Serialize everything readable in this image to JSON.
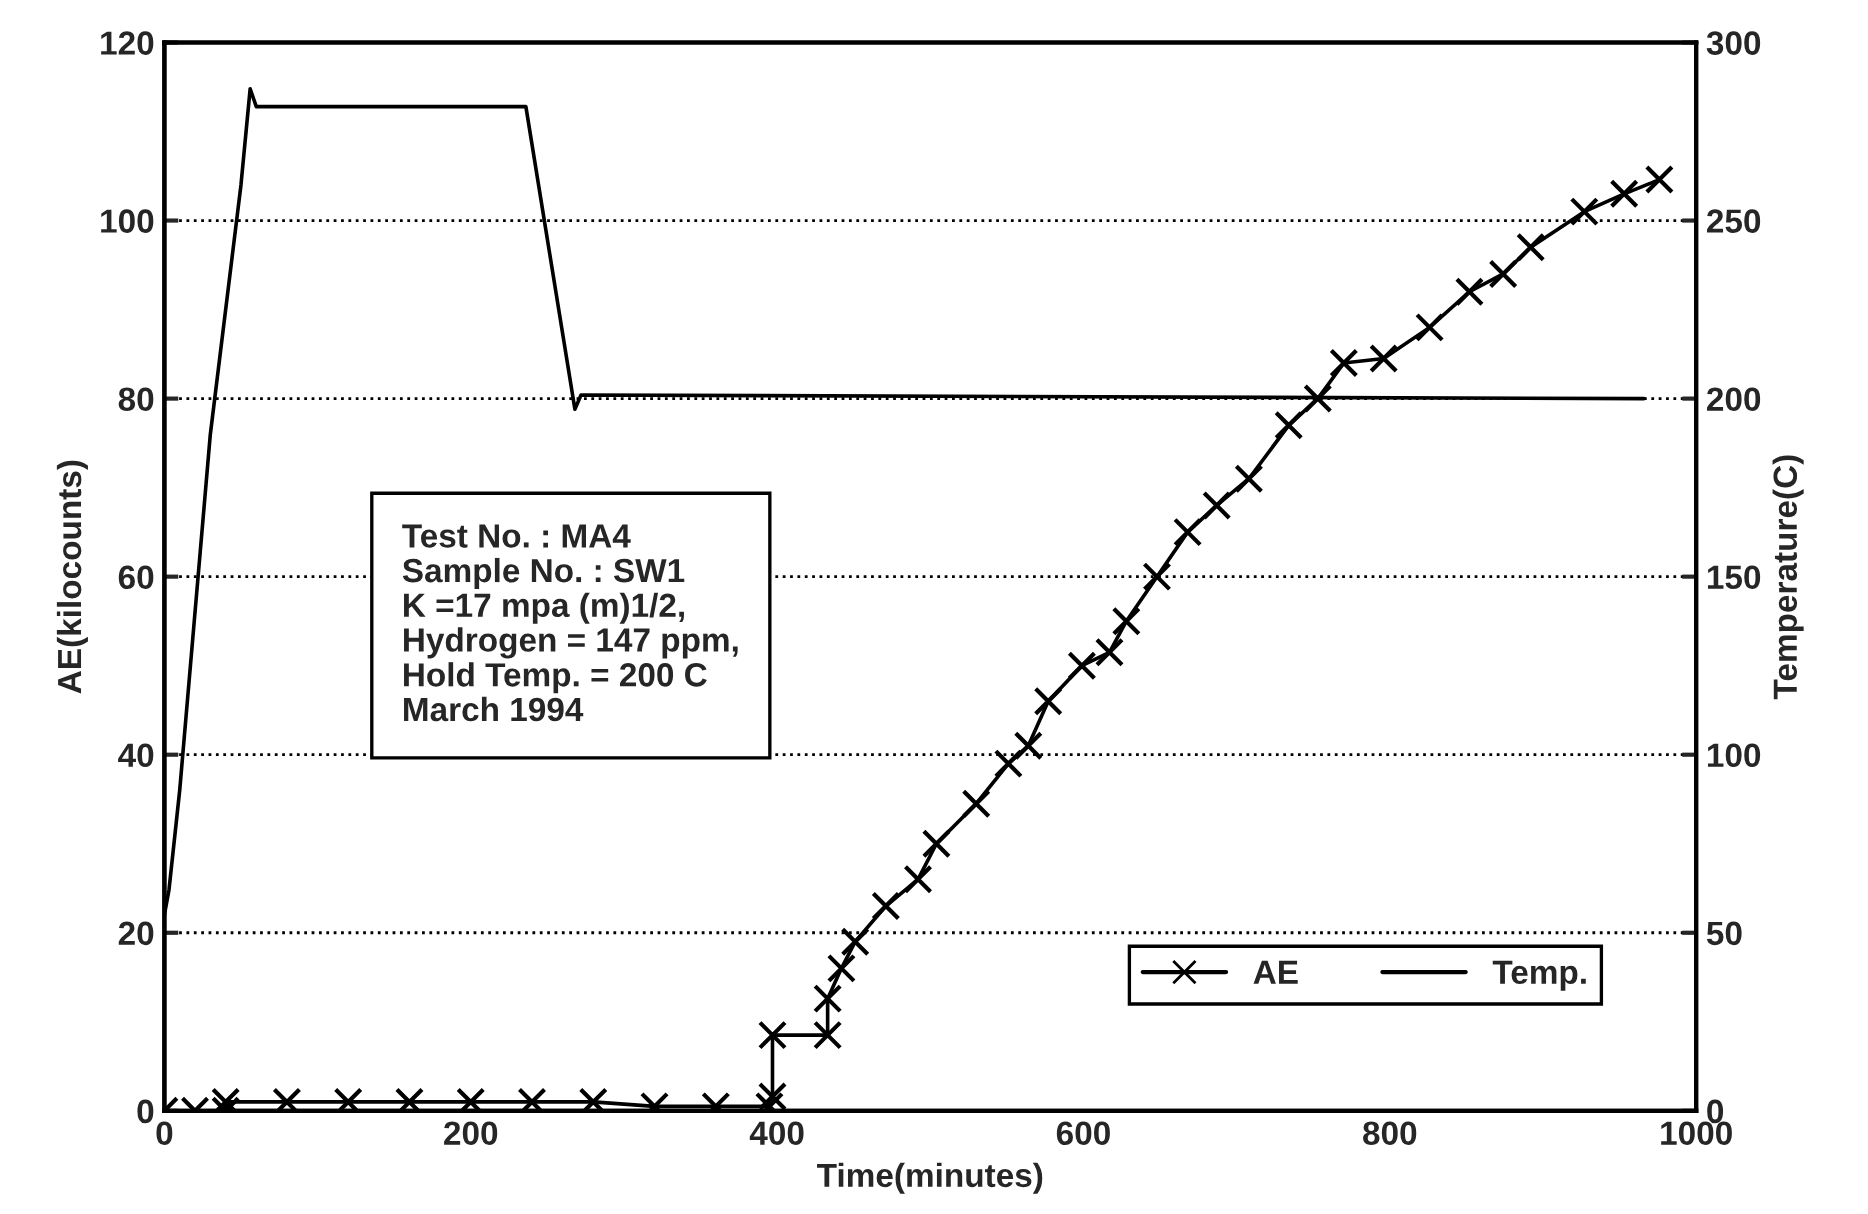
{
  "chart_data": {
    "type": "line",
    "xlabel": "Time(minutes)",
    "ylabel": "AE(kilocounts)",
    "y2label": "Temperature(C)",
    "xlim": [
      0,
      1000
    ],
    "xticks": [
      0,
      200,
      400,
      600,
      800,
      1000
    ],
    "ylim": [
      0,
      120
    ],
    "yticks": [
      0,
      20,
      40,
      60,
      80,
      100,
      120
    ],
    "y2lim": [
      0,
      300
    ],
    "y2ticks": [
      0,
      50,
      100,
      150,
      200,
      250,
      300
    ],
    "grid": "y",
    "legend": "bottom right",
    "annotations": [
      "Test No. : MA4\nSample No. : SW1\nK =17 mpa (m)1/2,\nHydrogen = 147 ppm,\nHold Temp. = 200 C\nMarch 1994"
    ],
    "series": [
      {
        "name": "AE",
        "color": "#000000",
        "marker": "cross",
        "line_style": "solid",
        "x": [
          0,
          20,
          40,
          40,
          80,
          120,
          160,
          200,
          240,
          280,
          320,
          360,
          395,
          397,
          397,
          433,
          433,
          442,
          451,
          471,
          492,
          504,
          530,
          551,
          564,
          577,
          599,
          617,
          628,
          648,
          668,
          687,
          708,
          734,
          753,
          770,
          796,
          826,
          852,
          874,
          892,
          927,
          953,
          976
        ],
        "values": [
          0,
          0,
          0,
          1,
          1,
          1,
          1,
          1,
          1,
          1,
          0.5,
          0.5,
          0.5,
          1.6,
          8.5,
          8.5,
          12.6,
          16,
          19,
          23,
          26,
          30,
          34.5,
          39,
          41,
          46,
          50,
          51.5,
          55,
          60,
          65,
          68,
          71,
          77,
          80,
          84,
          84.5,
          88,
          92,
          94,
          97,
          101,
          103,
          104.6
        ]
      },
      {
        "name": "Temp.",
        "color": "#000000",
        "marker": "none",
        "line_style": "solid",
        "axis": "y2",
        "x": [
          0,
          3,
          10,
          30,
          50,
          56,
          60,
          236,
          268,
          272,
          966
        ],
        "values": [
          55,
          62,
          90,
          190,
          260,
          287,
          282,
          282,
          197,
          201,
          200
        ]
      }
    ]
  }
}
